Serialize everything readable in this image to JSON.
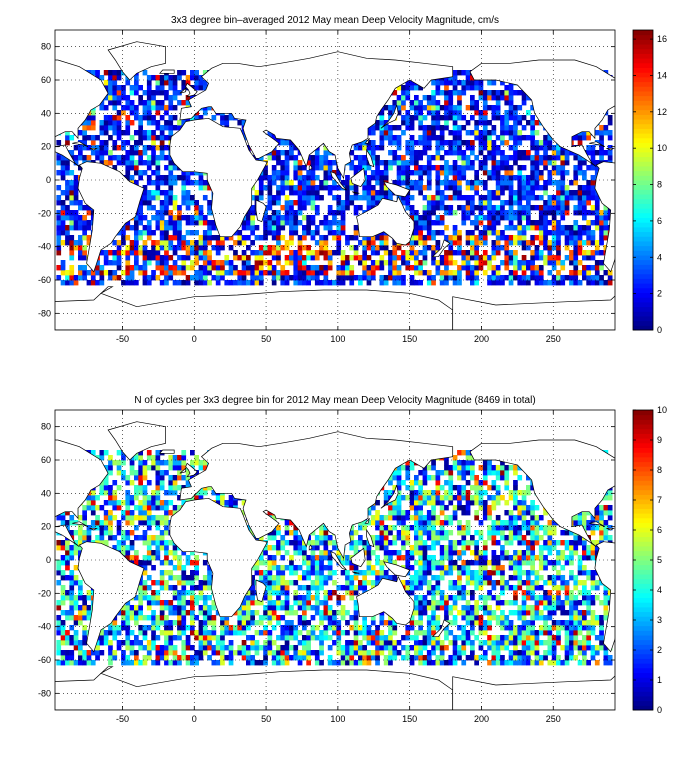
{
  "chart_data": [
    {
      "type": "heatmap",
      "title": "3x3 degree bin–averaged 2012 May mean Deep Velocity Magnitude, cm/s",
      "xlim": [
        -97,
        293
      ],
      "ylim": [
        -90,
        90
      ],
      "x_ticks": [
        "-50",
        "0",
        "50",
        "100",
        "150",
        "200",
        "250"
      ],
      "y_ticks": [
        "80",
        "60",
        "40",
        "20",
        "0",
        "-20",
        "-40",
        "-60",
        "-80"
      ],
      "colorbar": {
        "min": 0,
        "max": 16.5,
        "ticks": [
          "0",
          "2",
          "4",
          "6",
          "8",
          "10",
          "12",
          "14",
          "16"
        ]
      },
      "grid": true,
      "colormap": "jet",
      "bin_size_deg": 3
    },
    {
      "type": "heatmap",
      "title": "N of cycles per 3x3 degree bin for 2012 May mean Deep Velocity Magnitude (8469 in total)",
      "xlim": [
        -97,
        293
      ],
      "ylim": [
        -90,
        90
      ],
      "x_ticks": [
        "-50",
        "0",
        "50",
        "100",
        "150",
        "200",
        "250"
      ],
      "y_ticks": [
        "80",
        "60",
        "40",
        "20",
        "0",
        "-20",
        "-40",
        "-60",
        "-80"
      ],
      "colorbar": {
        "min": 0,
        "max": 10,
        "ticks": [
          "0",
          "1",
          "2",
          "3",
          "4",
          "5",
          "6",
          "7",
          "8",
          "9",
          "10"
        ]
      },
      "grid": true,
      "colormap": "jet",
      "bin_size_deg": 3,
      "total_cycles": 8469
    }
  ]
}
